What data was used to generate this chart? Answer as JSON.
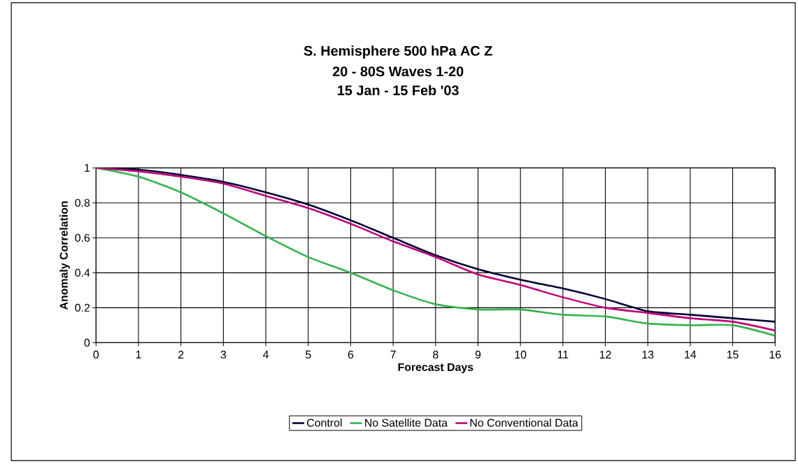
{
  "chart_data": {
    "type": "line",
    "title": "S. Hemisphere 500 hPa AC Z",
    "subtitle": "20 - 80S Waves 1-20",
    "annotations": [
      "15 Jan - 15 Feb '03"
    ],
    "xlabel": "Forecast Days",
    "ylabel": "Anomaly Correlation",
    "x": [
      0,
      1,
      2,
      3,
      4,
      5,
      6,
      7,
      8,
      9,
      10,
      11,
      12,
      13,
      14,
      15,
      16
    ],
    "xlim": [
      0,
      16
    ],
    "xticks": [
      0,
      1,
      2,
      3,
      4,
      5,
      6,
      7,
      8,
      9,
      10,
      11,
      12,
      13,
      14,
      15,
      16
    ],
    "ylim": [
      0,
      1
    ],
    "yticks": [
      0,
      0.2,
      0.4,
      0.6,
      0.8,
      1
    ],
    "series": [
      {
        "name": "Control",
        "color": "#000033",
        "values": [
          1,
          0.99,
          0.96,
          0.92,
          0.86,
          0.79,
          0.7,
          0.6,
          0.5,
          0.42,
          0.36,
          0.31,
          0.25,
          0.18,
          0.16,
          0.14,
          0.12
        ]
      },
      {
        "name": "No Satellite Data",
        "color": "#33b34d",
        "values": [
          1,
          0.95,
          0.86,
          0.74,
          0.61,
          0.49,
          0.4,
          0.3,
          0.22,
          0.19,
          0.19,
          0.16,
          0.15,
          0.11,
          0.1,
          0.1,
          0.04
        ]
      },
      {
        "name": "No Conventional Data",
        "color": "#c0007a",
        "values": [
          1,
          0.98,
          0.95,
          0.91,
          0.84,
          0.77,
          0.68,
          0.58,
          0.49,
          0.39,
          0.33,
          0.26,
          0.2,
          0.17,
          0.14,
          0.12,
          0.07
        ]
      }
    ],
    "grid": true,
    "legend": "bottom",
    "line_style": "solid"
  }
}
